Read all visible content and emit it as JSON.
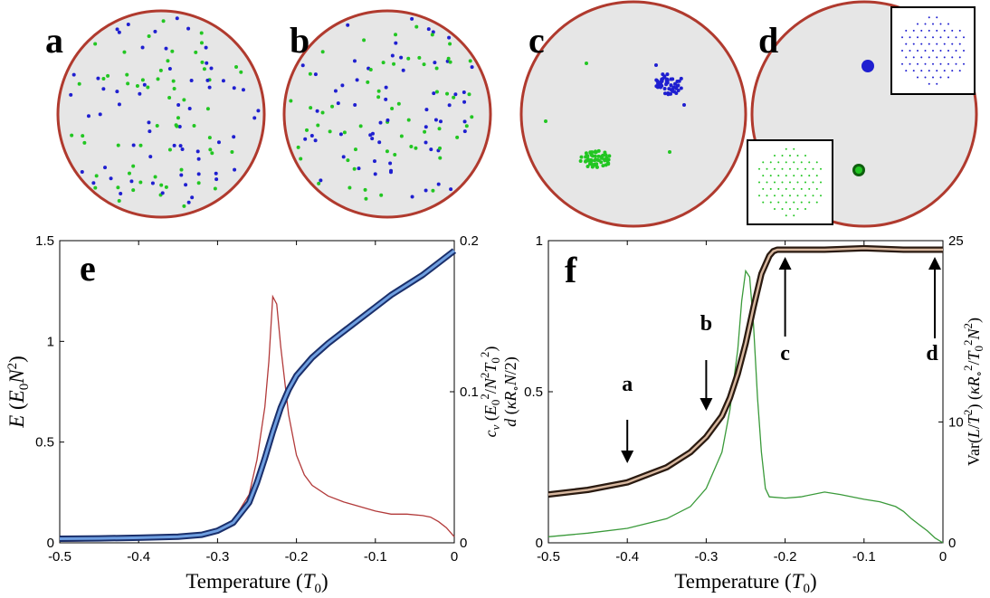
{
  "panels_top": [
    {
      "letter": "a",
      "blue_seed": 11,
      "green_seed": 23,
      "mode": "scatter"
    },
    {
      "letter": "b",
      "blue_seed": 37,
      "green_seed": 41,
      "mode": "scatter"
    },
    {
      "letter": "c",
      "mode": "cluster"
    },
    {
      "letter": "d",
      "mode": "crystal"
    }
  ],
  "colors": {
    "disk_fill": "#e6e6e6",
    "disk_edge": "#b03a2e",
    "blue": "#1f1fd0",
    "green": "#22c622",
    "energy_curve": "#1a2f6b",
    "energy_highlight": "#6f9fe0",
    "cv_curve": "#b23a3a",
    "d_curve": "#2a1a10",
    "d_highlight": "#d8b8a0",
    "var_curve": "#3a9a3a"
  },
  "chart_data": [
    {
      "type": "line",
      "panel": "e",
      "xlabel": "Temperature (T0)",
      "xlim": [
        -0.5,
        0
      ],
      "xticks": [
        "-0.5",
        "-0.4",
        "-0.3",
        "-0.2",
        "-0.1",
        "0"
      ],
      "ylabel_left": "E (E0N²)",
      "ylim_left": [
        0,
        1.5
      ],
      "yticks_left": [
        "0",
        "0.5",
        "1",
        "1.5"
      ],
      "ylabel_right": [
        "c_v (E0²/N²T0²)",
        "d (κR∘N/2)"
      ],
      "ylim_right": [
        0,
        0.2
      ],
      "yticks_right": [
        "0",
        "0.1",
        "0.2"
      ],
      "series": [
        {
          "axis": "left",
          "x": [
            -0.5,
            -0.45,
            -0.4,
            -0.35,
            -0.32,
            -0.3,
            -0.28,
            -0.26,
            -0.25,
            -0.24,
            -0.23,
            -0.22,
            -0.21,
            -0.2,
            -0.18,
            -0.16,
            -0.14,
            -0.12,
            -0.1,
            -0.08,
            -0.06,
            -0.04,
            -0.02,
            0
          ],
          "values": [
            0.02,
            0.022,
            0.025,
            0.03,
            0.04,
            0.06,
            0.1,
            0.2,
            0.3,
            0.42,
            0.55,
            0.67,
            0.76,
            0.83,
            0.92,
            0.99,
            1.05,
            1.11,
            1.17,
            1.23,
            1.28,
            1.33,
            1.39,
            1.45
          ]
        },
        {
          "axis": "right",
          "x": [
            -0.5,
            -0.4,
            -0.35,
            -0.3,
            -0.28,
            -0.26,
            -0.25,
            -0.24,
            -0.235,
            -0.23,
            -0.225,
            -0.22,
            -0.21,
            -0.2,
            -0.19,
            -0.18,
            -0.16,
            -0.14,
            -0.12,
            -0.1,
            -0.08,
            -0.06,
            -0.04,
            -0.03,
            -0.02,
            -0.01,
            0
          ],
          "values": [
            0.001,
            0.002,
            0.003,
            0.008,
            0.015,
            0.032,
            0.055,
            0.09,
            0.12,
            0.163,
            0.158,
            0.13,
            0.085,
            0.058,
            0.045,
            0.038,
            0.031,
            0.027,
            0.024,
            0.021,
            0.019,
            0.019,
            0.018,
            0.017,
            0.014,
            0.01,
            0.004
          ]
        }
      ]
    },
    {
      "type": "line",
      "panel": "f",
      "xlabel": "Temperature (T0)",
      "xlim": [
        -0.5,
        0
      ],
      "xticks": [
        "-0.5",
        "-0.4",
        "-0.3",
        "-0.2",
        "-0.1",
        "0"
      ],
      "ylim_left": [
        0,
        1
      ],
      "yticks_left": [
        "0",
        "0.5",
        "1"
      ],
      "ylabel_right": "Var(L/T²) (κR∘²/T0²N²)",
      "ylim_right": [
        0,
        25
      ],
      "yticks_right": [
        "0",
        "10",
        "25"
      ],
      "series": [
        {
          "axis": "left",
          "x": [
            -0.5,
            -0.45,
            -0.4,
            -0.35,
            -0.32,
            -0.3,
            -0.28,
            -0.27,
            -0.26,
            -0.25,
            -0.24,
            -0.23,
            -0.22,
            -0.215,
            -0.21,
            -0.2,
            -0.15,
            -0.1,
            -0.05,
            0
          ],
          "values": [
            0.16,
            0.175,
            0.2,
            0.25,
            0.3,
            0.35,
            0.42,
            0.48,
            0.56,
            0.66,
            0.78,
            0.89,
            0.95,
            0.965,
            0.97,
            0.97,
            0.97,
            0.975,
            0.97,
            0.97
          ]
        },
        {
          "axis": "right",
          "x": [
            -0.5,
            -0.45,
            -0.4,
            -0.35,
            -0.32,
            -0.3,
            -0.28,
            -0.27,
            -0.26,
            -0.255,
            -0.25,
            -0.245,
            -0.24,
            -0.235,
            -0.23,
            -0.225,
            -0.22,
            -0.2,
            -0.18,
            -0.15,
            -0.13,
            -0.1,
            -0.08,
            -0.06,
            -0.05,
            -0.04,
            -0.03,
            -0.02,
            -0.01,
            0
          ],
          "values": [
            0.5,
            0.8,
            1.2,
            2.0,
            3.0,
            4.5,
            7.5,
            11,
            16,
            20,
            22.5,
            22,
            18,
            12,
            7.5,
            4.5,
            3.8,
            3.7,
            3.8,
            4.2,
            4.0,
            3.6,
            3.4,
            3.0,
            2.6,
            2.0,
            1.5,
            1.0,
            0.4,
            0.0
          ]
        }
      ],
      "annotations": [
        {
          "label": "a",
          "x": -0.4
        },
        {
          "label": "b",
          "x": -0.3
        },
        {
          "label": "c",
          "x": -0.2
        },
        {
          "label": "d",
          "x": 0
        }
      ]
    }
  ]
}
